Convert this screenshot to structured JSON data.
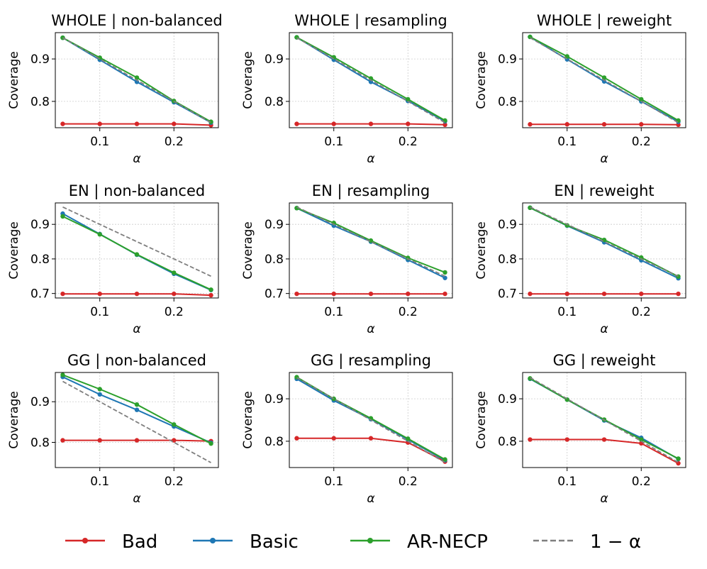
{
  "colors": {
    "Bad": "#d62728",
    "Basic": "#1f77b4",
    "AR-NECP": "#2ca02c",
    "ref": "#7f7f7f",
    "grid": "#cccccc"
  },
  "legend": {
    "location": "bottom-center",
    "items": [
      {
        "key": "Bad",
        "label": "Bad",
        "style": "solid-marker"
      },
      {
        "key": "Basic",
        "label": "Basic",
        "style": "solid-marker"
      },
      {
        "key": "AR-NECP",
        "label": "AR-NECP",
        "style": "solid-marker"
      },
      {
        "key": "ref",
        "label": "1 − α",
        "style": "dashed"
      }
    ]
  },
  "chart_data": [
    {
      "type": "line",
      "title": "WHOLE | non-balanced",
      "xlabel": "α",
      "ylabel": "Coverage",
      "x": [
        0.05,
        0.1,
        0.15,
        0.2,
        0.25
      ],
      "xticks": [
        "0.1",
        "0.2"
      ],
      "xtick_values": [
        0.1,
        0.2
      ],
      "ylim": [
        0.738,
        0.962
      ],
      "yticks": [
        "0.8",
        "0.9"
      ],
      "ytick_values": [
        0.8,
        0.9
      ],
      "series": [
        {
          "name": "Bad",
          "values": [
            0.747,
            0.747,
            0.747,
            0.747,
            0.744
          ]
        },
        {
          "name": "Basic",
          "values": [
            0.95,
            0.898,
            0.846,
            0.798,
            0.75
          ]
        },
        {
          "name": "AR-NECP",
          "values": [
            0.95,
            0.903,
            0.856,
            0.801,
            0.752
          ]
        },
        {
          "name": "1 − α",
          "values": [
            0.95,
            0.9,
            0.85,
            0.8,
            0.75
          ],
          "dashed": true
        }
      ]
    },
    {
      "type": "line",
      "title": "WHOLE | resampling",
      "xlabel": "α",
      "ylabel": "Coverage",
      "x": [
        0.05,
        0.1,
        0.15,
        0.2,
        0.25
      ],
      "xticks": [
        "0.1",
        "0.2"
      ],
      "xtick_values": [
        0.1,
        0.2
      ],
      "ylim": [
        0.738,
        0.962
      ],
      "yticks": [
        "0.8",
        "0.9"
      ],
      "ytick_values": [
        0.8,
        0.9
      ],
      "series": [
        {
          "name": "Bad",
          "values": [
            0.747,
            0.747,
            0.747,
            0.747,
            0.745
          ]
        },
        {
          "name": "Basic",
          "values": [
            0.951,
            0.898,
            0.846,
            0.801,
            0.753
          ]
        },
        {
          "name": "AR-NECP",
          "values": [
            0.951,
            0.904,
            0.854,
            0.805,
            0.755
          ]
        },
        {
          "name": "1 − α",
          "values": [
            0.95,
            0.9,
            0.85,
            0.8,
            0.75
          ],
          "dashed": true
        }
      ]
    },
    {
      "type": "line",
      "title": "WHOLE | reweight",
      "xlabel": "α",
      "ylabel": "Coverage",
      "x": [
        0.05,
        0.1,
        0.15,
        0.2,
        0.25
      ],
      "xticks": [
        "0.1",
        "0.2"
      ],
      "xtick_values": [
        0.1,
        0.2
      ],
      "ylim": [
        0.738,
        0.962
      ],
      "yticks": [
        "0.8",
        "0.9"
      ],
      "ytick_values": [
        0.8,
        0.9
      ],
      "series": [
        {
          "name": "Bad",
          "values": [
            0.746,
            0.746,
            0.746,
            0.746,
            0.745
          ]
        },
        {
          "name": "Basic",
          "values": [
            0.952,
            0.899,
            0.847,
            0.8,
            0.752
          ]
        },
        {
          "name": "AR-NECP",
          "values": [
            0.952,
            0.906,
            0.856,
            0.805,
            0.755
          ]
        },
        {
          "name": "1 − α",
          "values": [
            0.95,
            0.9,
            0.85,
            0.8,
            0.75
          ],
          "dashed": true
        }
      ]
    },
    {
      "type": "line",
      "title": "EN | non-balanced",
      "xlabel": "α",
      "ylabel": "Coverage",
      "x": [
        0.05,
        0.1,
        0.15,
        0.2,
        0.25
      ],
      "xticks": [
        "0.1",
        "0.2"
      ],
      "xtick_values": [
        0.1,
        0.2
      ],
      "ylim": [
        0.687,
        0.962
      ],
      "yticks": [
        "0.7",
        "0.8",
        "0.9"
      ],
      "ytick_values": [
        0.7,
        0.8,
        0.9
      ],
      "series": [
        {
          "name": "Bad",
          "values": [
            0.699,
            0.699,
            0.699,
            0.699,
            0.695
          ]
        },
        {
          "name": "Basic",
          "values": [
            0.931,
            0.872,
            0.812,
            0.757,
            0.71
          ]
        },
        {
          "name": "AR-NECP",
          "values": [
            0.923,
            0.871,
            0.813,
            0.76,
            0.711
          ]
        },
        {
          "name": "1 − α",
          "values": [
            0.95,
            0.9,
            0.85,
            0.8,
            0.75
          ],
          "dashed": true
        }
      ]
    },
    {
      "type": "line",
      "title": "EN | resampling",
      "xlabel": "α",
      "ylabel": "Coverage",
      "x": [
        0.05,
        0.1,
        0.15,
        0.2,
        0.25
      ],
      "xticks": [
        "0.1",
        "0.2"
      ],
      "xtick_values": [
        0.1,
        0.2
      ],
      "ylim": [
        0.687,
        0.962
      ],
      "yticks": [
        "0.7",
        "0.8",
        "0.9"
      ],
      "ytick_values": [
        0.7,
        0.8,
        0.9
      ],
      "series": [
        {
          "name": "Bad",
          "values": [
            0.699,
            0.699,
            0.699,
            0.699,
            0.699
          ]
        },
        {
          "name": "Basic",
          "values": [
            0.947,
            0.896,
            0.85,
            0.797,
            0.745
          ]
        },
        {
          "name": "AR-NECP",
          "values": [
            0.947,
            0.904,
            0.853,
            0.803,
            0.761
          ]
        },
        {
          "name": "1 − α",
          "values": [
            0.95,
            0.9,
            0.85,
            0.8,
            0.75
          ],
          "dashed": true
        }
      ]
    },
    {
      "type": "line",
      "title": "EN | reweight",
      "xlabel": "α",
      "ylabel": "Coverage",
      "x": [
        0.05,
        0.1,
        0.15,
        0.2,
        0.25
      ],
      "xticks": [
        "0.1",
        "0.2"
      ],
      "xtick_values": [
        0.1,
        0.2
      ],
      "ylim": [
        0.687,
        0.962
      ],
      "yticks": [
        "0.7",
        "0.8",
        "0.9"
      ],
      "ytick_values": [
        0.7,
        0.8,
        0.9
      ],
      "series": [
        {
          "name": "Bad",
          "values": [
            0.699,
            0.699,
            0.699,
            0.699,
            0.699
          ]
        },
        {
          "name": "Basic",
          "values": [
            0.948,
            0.896,
            0.848,
            0.796,
            0.744
          ]
        },
        {
          "name": "AR-NECP",
          "values": [
            0.948,
            0.897,
            0.855,
            0.804,
            0.749
          ]
        },
        {
          "name": "1 − α",
          "values": [
            0.95,
            0.9,
            0.85,
            0.8,
            0.75
          ],
          "dashed": true
        }
      ]
    },
    {
      "type": "line",
      "title": "GG | non-balanced",
      "xlabel": "α",
      "ylabel": "Coverage",
      "x": [
        0.05,
        0.1,
        0.15,
        0.2,
        0.25
      ],
      "xticks": [
        "0.1",
        "0.2"
      ],
      "xtick_values": [
        0.1,
        0.2
      ],
      "ylim": [
        0.738,
        0.972
      ],
      "yticks": [
        "0.8",
        "0.9"
      ],
      "ytick_values": [
        0.8,
        0.9
      ],
      "series": [
        {
          "name": "Bad",
          "values": [
            0.805,
            0.805,
            0.805,
            0.805,
            0.803
          ]
        },
        {
          "name": "Basic",
          "values": [
            0.961,
            0.918,
            0.88,
            0.839,
            0.799
          ]
        },
        {
          "name": "AR-NECP",
          "values": [
            0.966,
            0.931,
            0.893,
            0.844,
            0.797
          ]
        },
        {
          "name": "1 − α",
          "values": [
            0.95,
            0.9,
            0.85,
            0.8,
            0.75
          ],
          "dashed": true
        }
      ]
    },
    {
      "type": "line",
      "title": "GG | resampling",
      "xlabel": "α",
      "ylabel": "Coverage",
      "x": [
        0.05,
        0.1,
        0.15,
        0.2,
        0.25
      ],
      "xticks": [
        "0.1",
        "0.2"
      ],
      "xtick_values": [
        0.1,
        0.2
      ],
      "ylim": [
        0.738,
        0.962
      ],
      "yticks": [
        "0.8",
        "0.9"
      ],
      "ytick_values": [
        0.8,
        0.9
      ],
      "series": [
        {
          "name": "Bad",
          "values": [
            0.807,
            0.807,
            0.807,
            0.797,
            0.752
          ]
        },
        {
          "name": "Basic",
          "values": [
            0.947,
            0.896,
            0.852,
            0.804,
            0.755
          ]
        },
        {
          "name": "AR-NECP",
          "values": [
            0.951,
            0.9,
            0.854,
            0.806,
            0.757
          ]
        },
        {
          "name": "1 − α",
          "values": [
            0.95,
            0.9,
            0.85,
            0.8,
            0.75
          ],
          "dashed": true
        }
      ]
    },
    {
      "type": "line",
      "title": "GG | reweight",
      "xlabel": "α",
      "ylabel": "Coverage",
      "x": [
        0.05,
        0.1,
        0.15,
        0.2,
        0.25
      ],
      "xticks": [
        "0.1",
        "0.2"
      ],
      "xtick_values": [
        0.1,
        0.2
      ],
      "ylim": [
        0.738,
        0.962
      ],
      "yticks": [
        "0.8",
        "0.9"
      ],
      "ytick_values": [
        0.8,
        0.9
      ],
      "series": [
        {
          "name": "Bad",
          "values": [
            0.804,
            0.804,
            0.804,
            0.795,
            0.748
          ]
        },
        {
          "name": "Basic",
          "values": [
            0.947,
            0.898,
            0.849,
            0.808,
            0.758
          ]
        },
        {
          "name": "AR-NECP",
          "values": [
            0.948,
            0.898,
            0.851,
            0.804,
            0.759
          ]
        },
        {
          "name": "1 − α",
          "values": [
            0.95,
            0.9,
            0.85,
            0.8,
            0.75
          ],
          "dashed": true
        }
      ]
    }
  ]
}
